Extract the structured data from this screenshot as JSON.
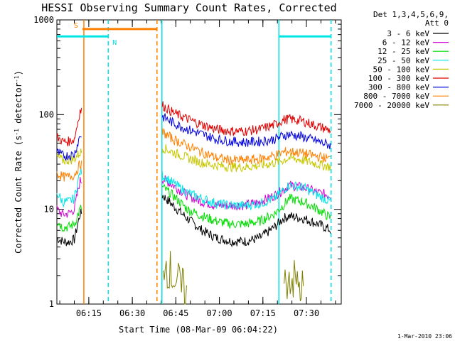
{
  "chart_data": {
    "type": "line",
    "title": "HESSI Observing Summary Count Rates, Corrected",
    "xlabel": "Start Time (08-Mar-09 06:04:22)",
    "ylabel": "Corrected Count Rate (s⁻¹ detector⁻¹)",
    "ylabel_parts": [
      "Corrected Count Rate (s",
      "-1",
      " detector",
      "-1",
      ")"
    ],
    "yscale": "log",
    "ylim": [
      1,
      1000
    ],
    "xlim_minutes": [
      0,
      98
    ],
    "x_ticks": [
      {
        "minute": 11,
        "label": "06:15"
      },
      {
        "minute": 26,
        "label": "06:30"
      },
      {
        "minute": 41,
        "label": "06:45"
      },
      {
        "minute": 56,
        "label": "07:00"
      },
      {
        "minute": 71,
        "label": "07:15"
      },
      {
        "minute": 86,
        "label": "07:30"
      }
    ],
    "y_ticks": [
      {
        "value": 1,
        "label": "1"
      },
      {
        "value": 10,
        "label": "10"
      },
      {
        "value": 100,
        "label": "100"
      },
      {
        "value": 1000,
        "label": "1000"
      }
    ],
    "legend_header": [
      "Det 1,3,4,5,6,9,",
      "Att 0"
    ],
    "legend_placement": "right",
    "grid": false,
    "flags": [
      {
        "label": "S",
        "color": "#ff8000",
        "start_min": 8.8,
        "end_min": 34.5,
        "value": 800
      },
      {
        "label": "N",
        "color": "#00e5e5",
        "start_min": 0,
        "end_min": 17.7,
        "value": 670
      },
      {
        "label": "",
        "color": "#00e5e5",
        "start_min": 76.5,
        "end_min": 94.5,
        "value": 670
      }
    ],
    "vertical_markers": [
      {
        "minute": 9.3,
        "color": "#ff8000",
        "style": "solid"
      },
      {
        "minute": 17.7,
        "color": "#00e5e5",
        "style": "dashed"
      },
      {
        "minute": 34.5,
        "color": "#ff8000",
        "style": "dashed"
      },
      {
        "minute": 36.2,
        "color": "#00e5e5",
        "style": "solid"
      },
      {
        "minute": 76.5,
        "color": "#00e5e5",
        "style": "solid"
      },
      {
        "minute": 94.5,
        "color": "#00e5e5",
        "style": "dashed"
      }
    ],
    "minutes": [
      0,
      2,
      4,
      6,
      8,
      36.5,
      40,
      45,
      50,
      55,
      60,
      65,
      70,
      75,
      78,
      80,
      85,
      90,
      94.5
    ],
    "series": [
      {
        "name": "3 - 6 keV",
        "color": "#000000",
        "values": [
          5.0,
          4.6,
          4.5,
          4.8,
          9.0,
          14,
          11,
          8.0,
          6.0,
          5.0,
          4.6,
          4.6,
          5.0,
          6.5,
          8.0,
          8.5,
          8.0,
          7.0,
          6.0
        ]
      },
      {
        "name": "6 - 12 keV",
        "color": "#d400d4",
        "values": [
          10,
          8.8,
          9.0,
          10,
          20,
          21,
          18,
          14,
          12,
          11,
          11,
          11,
          12,
          14,
          16,
          18,
          17,
          15,
          14
        ]
      },
      {
        "name": "12 - 25 keV",
        "color": "#00dd00",
        "values": [
          7.5,
          6.5,
          6.5,
          7.0,
          10,
          17,
          14,
          10,
          8.5,
          7.5,
          7.0,
          7.0,
          7.5,
          9.0,
          11,
          13,
          12,
          10,
          8.0
        ]
      },
      {
        "name": "25 - 50 keV",
        "color": "#00e5e5",
        "values": [
          15,
          12,
          12,
          13,
          25,
          23,
          19,
          15,
          13,
          11.5,
          11,
          11,
          11.5,
          13,
          16,
          18,
          17,
          14,
          12
        ]
      },
      {
        "name": "50 - 100 keV",
        "color": "#c8c800",
        "values": [
          36,
          33,
          33,
          34,
          40,
          45,
          40,
          35,
          31,
          29,
          28,
          28,
          29,
          31,
          33,
          35,
          33,
          30,
          28
        ]
      },
      {
        "name": "100 - 300 keV",
        "color": "#e00000",
        "values": [
          58,
          52,
          52,
          55,
          110,
          125,
          105,
          90,
          78,
          70,
          67,
          67,
          70,
          78,
          88,
          90,
          85,
          75,
          68
        ]
      },
      {
        "name": "300 - 800 keV",
        "color": "#0000e0",
        "values": [
          40,
          37,
          37,
          38,
          60,
          95,
          82,
          70,
          62,
          55,
          52,
          51,
          52,
          55,
          60,
          62,
          58,
          52,
          47
        ]
      },
      {
        "name": "800 - 7000 keV",
        "color": "#ff8000",
        "values": [
          24,
          22,
          22,
          23,
          30,
          65,
          55,
          47,
          40,
          35,
          33,
          33,
          34,
          37,
          40,
          41,
          39,
          36,
          34
        ]
      },
      {
        "name": "7000 - 20000 keV",
        "color": "#808000",
        "values": [
          null,
          null,
          null,
          null,
          null,
          3,
          2,
          1.2,
          null,
          null,
          null,
          null,
          null,
          null,
          1.5,
          2.0,
          1.4,
          null,
          null
        ]
      }
    ]
  },
  "footer_stamp": "1-Mar-2010 23:06"
}
